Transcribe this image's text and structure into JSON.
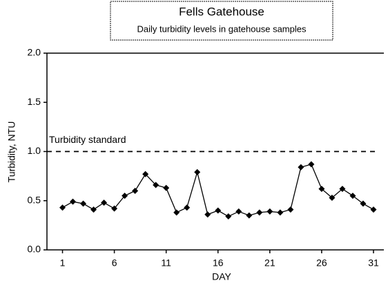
{
  "chart_data": {
    "type": "line",
    "title": "Fells Gatehouse",
    "subtitle": "Daily turbidity levels in gatehouse samples",
    "x_label": "DAY",
    "y_label": "Turbidity, NTU",
    "x": [
      1,
      2,
      3,
      4,
      5,
      6,
      7,
      8,
      9,
      10,
      11,
      12,
      13,
      14,
      15,
      16,
      17,
      18,
      19,
      20,
      21,
      22,
      23,
      24,
      25,
      26,
      27,
      28,
      29,
      30,
      31
    ],
    "series": [
      {
        "color": "#000000",
        "values": [
          0.43,
          0.49,
          0.47,
          0.41,
          0.48,
          0.42,
          0.55,
          0.6,
          0.77,
          0.66,
          0.63,
          0.38,
          0.43,
          0.79,
          0.36,
          0.4,
          0.34,
          0.39,
          0.35,
          0.38,
          0.39,
          0.38,
          0.41,
          0.84,
          0.87,
          0.62,
          0.53,
          0.62,
          0.55,
          0.47,
          0.41
        ]
      }
    ],
    "reference_line": {
      "value": 1.0,
      "label": "Turbidity standard"
    },
    "xlim": [
      -0.5,
      32
    ],
    "xticks": [
      1,
      6,
      11,
      16,
      21,
      26,
      31
    ],
    "ylim": [
      0,
      2
    ],
    "yticks": [
      {
        "value": 0,
        "label": "0.0"
      },
      0.5,
      {
        "value": 1,
        "label": "1.0"
      },
      1.5,
      {
        "value": 2,
        "label": "2.0"
      }
    ]
  }
}
